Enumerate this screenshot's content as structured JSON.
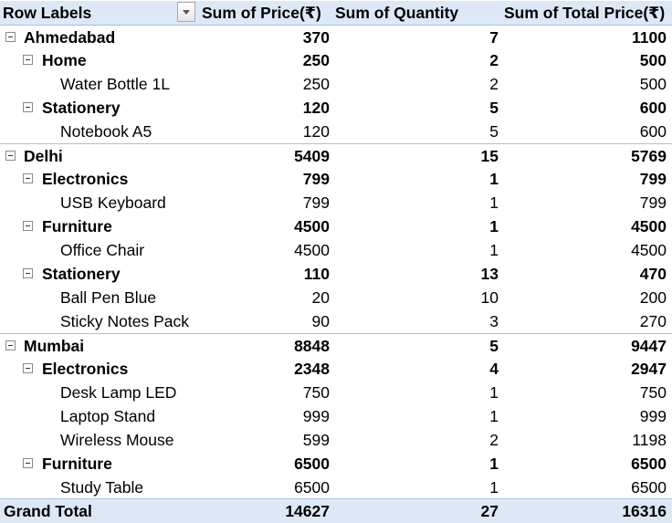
{
  "header": {
    "row_labels": "Row Labels",
    "col1": "Sum of  Price(₹)",
    "col2": "Sum of  Quantity",
    "col3": "Sum of Total Price(₹)"
  },
  "rows": [
    {
      "label": "Ahmedabad",
      "price": "370",
      "qty": "7",
      "total": "1100"
    },
    {
      "label": "Home",
      "price": "250",
      "qty": "2",
      "total": "500"
    },
    {
      "label": "Water Bottle 1L",
      "price": "250",
      "qty": "2",
      "total": "500"
    },
    {
      "label": "Stationery",
      "price": "120",
      "qty": "5",
      "total": "600"
    },
    {
      "label": "Notebook A5",
      "price": "120",
      "qty": "5",
      "total": "600"
    },
    {
      "label": "Delhi",
      "price": "5409",
      "qty": "15",
      "total": "5769"
    },
    {
      "label": "Electronics",
      "price": "799",
      "qty": "1",
      "total": "799"
    },
    {
      "label": "USB Keyboard",
      "price": "799",
      "qty": "1",
      "total": "799"
    },
    {
      "label": "Furniture",
      "price": "4500",
      "qty": "1",
      "total": "4500"
    },
    {
      "label": "Office Chair",
      "price": "4500",
      "qty": "1",
      "total": "4500"
    },
    {
      "label": "Stationery",
      "price": "110",
      "qty": "13",
      "total": "470"
    },
    {
      "label": "Ball Pen Blue",
      "price": "20",
      "qty": "10",
      "total": "200"
    },
    {
      "label": "Sticky Notes Pack",
      "price": "90",
      "qty": "3",
      "total": "270"
    },
    {
      "label": "Mumbai",
      "price": "8848",
      "qty": "5",
      "total": "9447"
    },
    {
      "label": "Electronics",
      "price": "2348",
      "qty": "4",
      "total": "2947"
    },
    {
      "label": "Desk Lamp LED",
      "price": "750",
      "qty": "1",
      "total": "750"
    },
    {
      "label": "Laptop Stand",
      "price": "999",
      "qty": "1",
      "total": "999"
    },
    {
      "label": "Wireless Mouse",
      "price": "599",
      "qty": "2",
      "total": "1198"
    },
    {
      "label": "Furniture",
      "price": "6500",
      "qty": "1",
      "total": "6500"
    },
    {
      "label": "Study Table",
      "price": "6500",
      "qty": "1",
      "total": "6500"
    }
  ],
  "grand_total": {
    "label": "Grand Total",
    "price": "14627",
    "qty": "27",
    "total": "16316"
  },
  "colors": {
    "header_fill": "#dde8f6",
    "border": "#a8c2e0"
  }
}
